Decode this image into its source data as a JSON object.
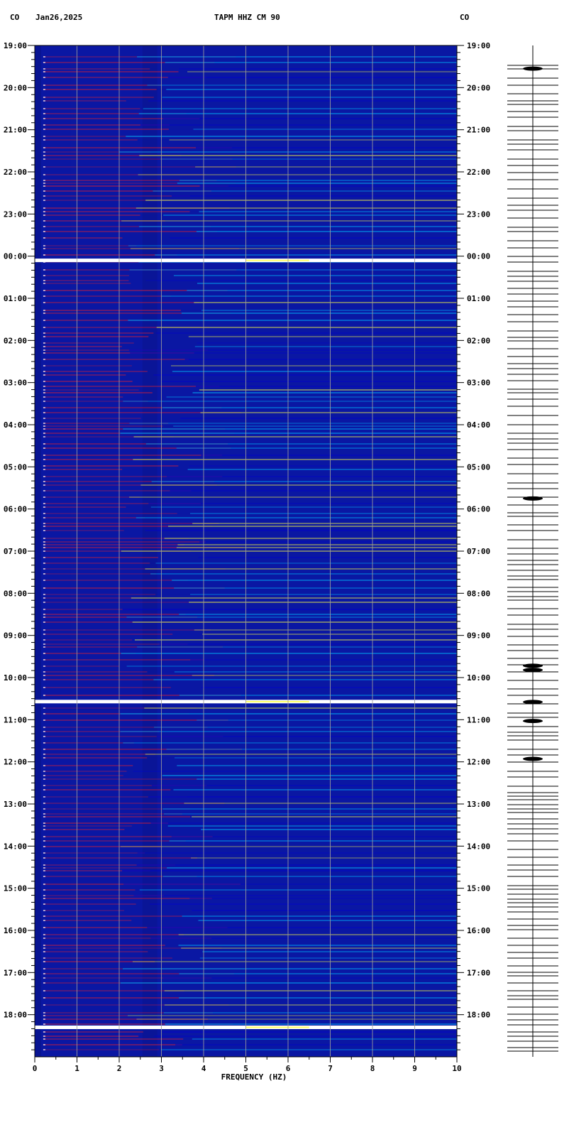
{
  "header": {
    "network_left": "CO",
    "date": "Jan26,2025",
    "station": "TAPM HHZ CM 90",
    "network_right": "CO"
  },
  "chart_data": {
    "type": "heatmap",
    "title": "TAPM HHZ CM 90",
    "xlabel": "FREQUENCY (HZ)",
    "ylabel": "",
    "xlim": [
      0,
      10
    ],
    "x_ticks": [
      "0",
      "1",
      "2",
      "3",
      "4",
      "5",
      "6",
      "7",
      "8",
      "9",
      "10"
    ],
    "y_tick_labels": [
      "19:00",
      "20:00",
      "21:00",
      "22:00",
      "23:00",
      "00:00",
      "01:00",
      "02:00",
      "03:00",
      "04:00",
      "05:00",
      "06:00",
      "07:00",
      "08:00",
      "09:00",
      "10:00",
      "11:00",
      "12:00",
      "13:00",
      "14:00",
      "15:00",
      "16:00",
      "17:00",
      "18:00"
    ],
    "ylim_hours": [
      0,
      24
    ],
    "grid": true,
    "colormap": [
      "#00008b",
      "#0000cd",
      "#00c0ff",
      "#ffff40",
      "#ff2020"
    ],
    "background_color": "#0a17a3",
    "bright_events_hours": [
      5.1,
      15.57,
      23.3
    ],
    "waveform_events_hours": [
      0.55,
      10.75,
      14.72,
      14.82,
      15.58,
      16.03,
      16.93
    ],
    "line_density": "dense"
  }
}
